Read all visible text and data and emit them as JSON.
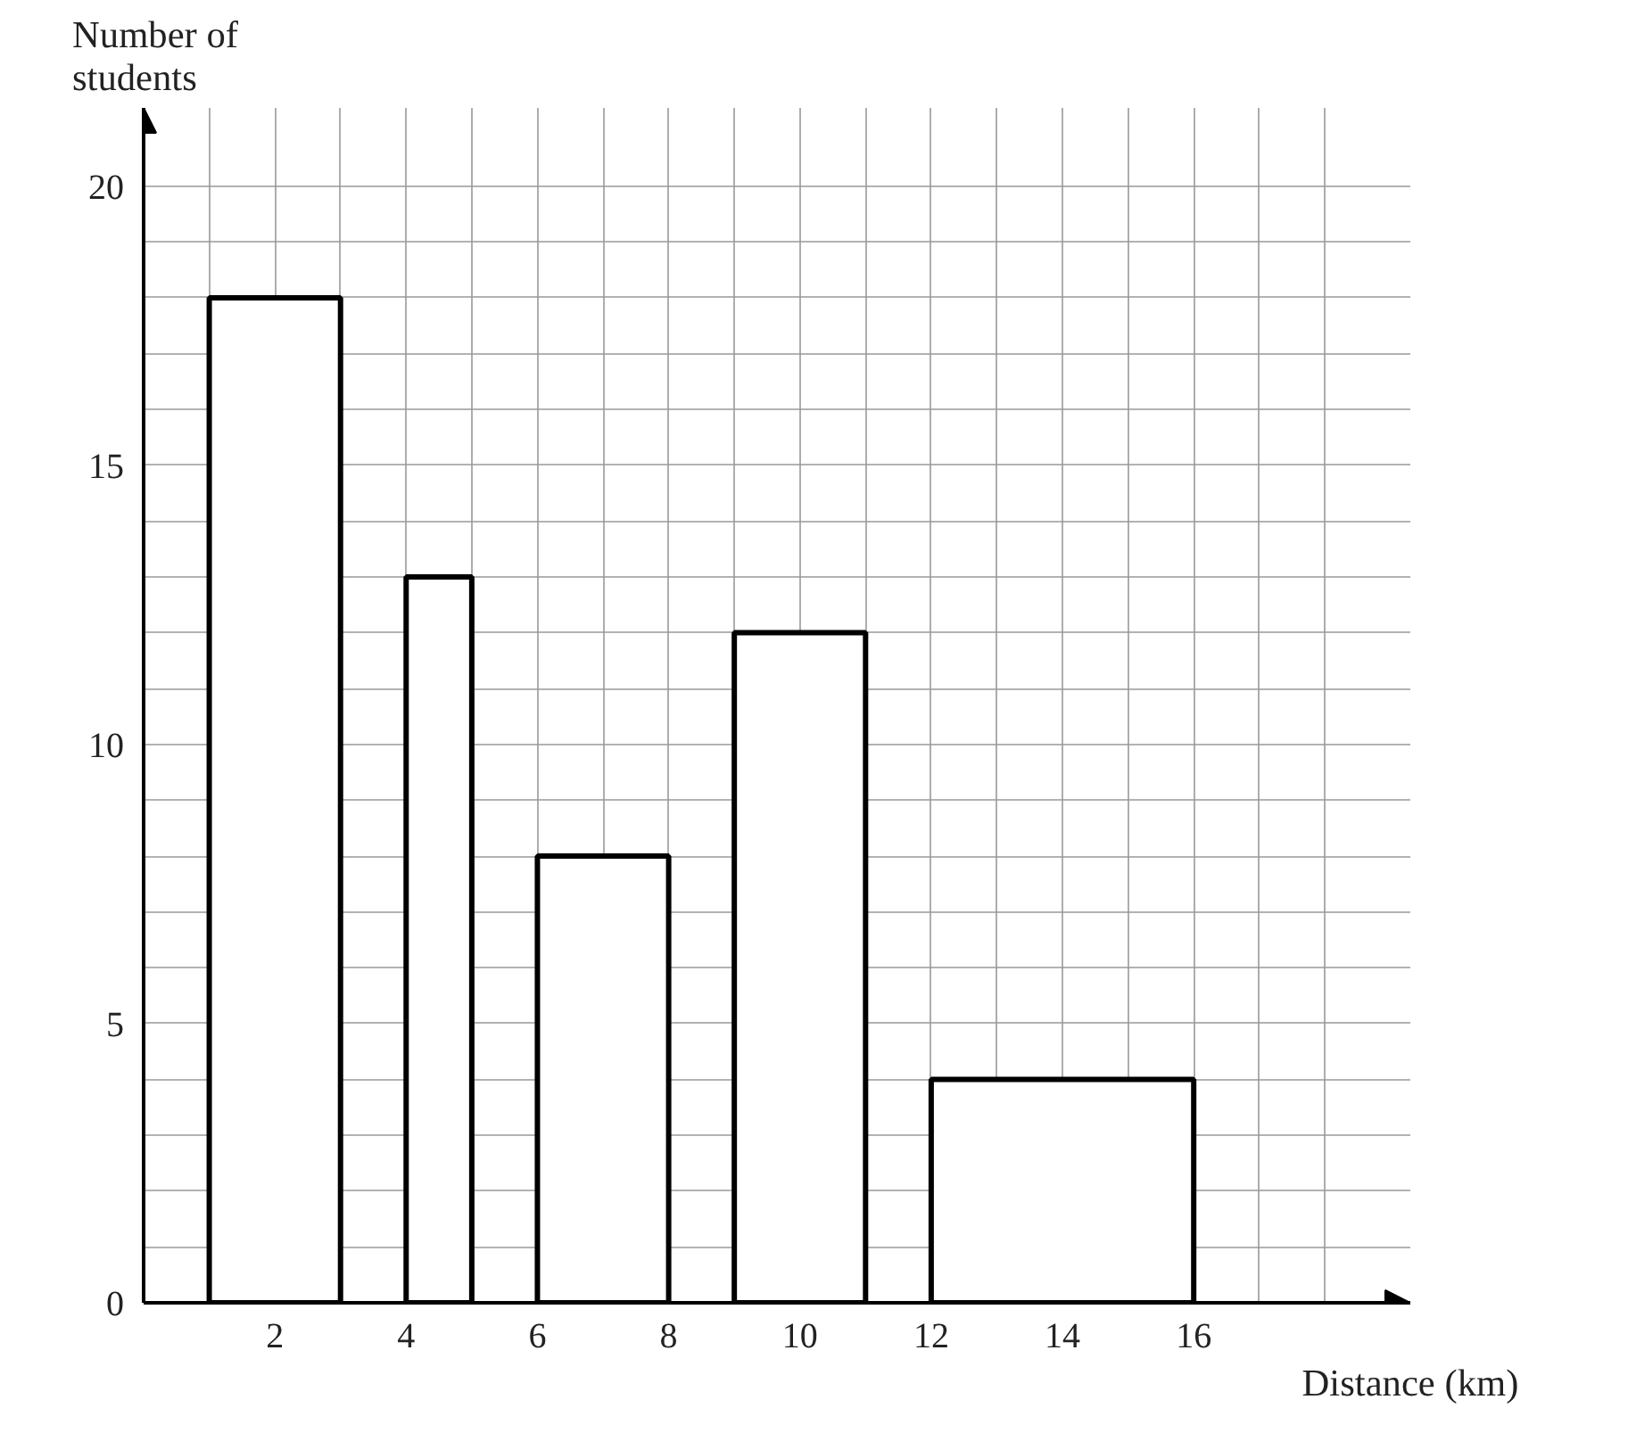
{
  "chart_data": {
    "type": "histogram",
    "xlabel": "Distance (km)",
    "ylabel": "Number of\nstudents",
    "bins": [
      1,
      3,
      4,
      5,
      6,
      8,
      9,
      11,
      12,
      16
    ],
    "values": [
      18,
      null,
      13,
      null,
      8,
      null,
      12,
      null,
      4
    ],
    "color": "#ffffff",
    "xlim": [
      0,
      19.3
    ],
    "ylim": [
      0,
      21.4
    ],
    "xticks": [
      {
        "value": 0,
        "label": null
      },
      {
        "value": 1,
        "label": null
      },
      2,
      {
        "value": 3,
        "label": null
      },
      4,
      {
        "value": 5,
        "label": null
      },
      6,
      {
        "value": 7,
        "label": null
      },
      8,
      {
        "value": 9,
        "label": null
      },
      10,
      {
        "value": 11,
        "label": null
      },
      12,
      {
        "value": 13,
        "label": null
      },
      14,
      {
        "value": 15,
        "label": null
      },
      16,
      {
        "value": 17,
        "label": null
      },
      {
        "value": 18,
        "label": null
      }
    ],
    "yticks": [
      0,
      {
        "value": 1,
        "label": null
      },
      {
        "value": 2,
        "label": null
      },
      {
        "value": 3,
        "label": null
      },
      {
        "value": 4,
        "label": null
      },
      5,
      {
        "value": 6,
        "label": null
      },
      {
        "value": 7,
        "label": null
      },
      {
        "value": 8,
        "label": null
      },
      {
        "value": 9,
        "label": null
      },
      10,
      {
        "value": 11,
        "label": null
      },
      {
        "value": 12,
        "label": null
      },
      {
        "value": 13,
        "label": null
      },
      {
        "value": 14,
        "label": null
      },
      15,
      {
        "value": 16,
        "label": null
      },
      {
        "value": 17,
        "label": null
      },
      {
        "value": 18,
        "label": null
      },
      {
        "value": 19,
        "label": null
      },
      20
    ],
    "grid": true
  }
}
